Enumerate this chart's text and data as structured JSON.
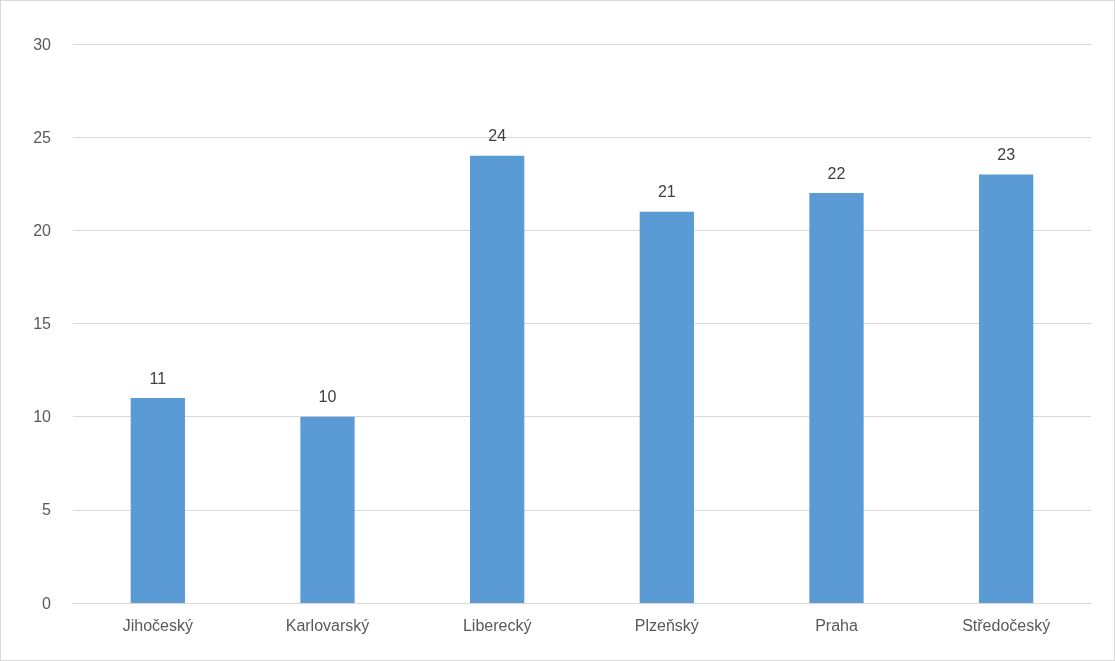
{
  "chart_data": {
    "type": "bar",
    "categories": [
      "Jihočeský",
      "Karlovarský",
      "Liberecký",
      "Plzeňský",
      "Praha",
      "Středočeský"
    ],
    "values": [
      11,
      10,
      24,
      21,
      22,
      23
    ],
    "color": "#5b9bd5",
    "ylim": [
      0,
      30
    ],
    "yticks": [
      0,
      5,
      10,
      15,
      20,
      25,
      30
    ],
    "grid": "y",
    "data_labels": true
  }
}
